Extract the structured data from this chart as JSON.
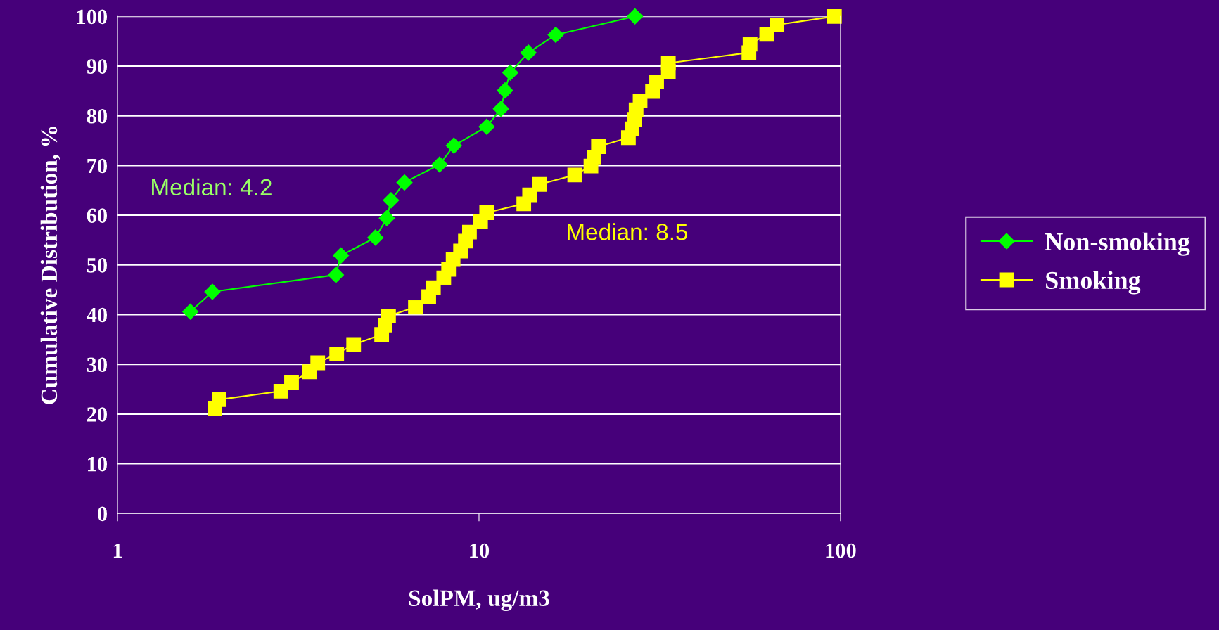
{
  "chart_data": {
    "type": "line",
    "xlabel": "SolPM, ug/m3",
    "ylabel": "Cumulative Distribution, %",
    "log": "x",
    "xlim": [
      1,
      100
    ],
    "xticks": [
      1,
      10,
      100
    ],
    "ylim": [
      0,
      100
    ],
    "yticks": [
      0,
      10,
      20,
      30,
      40,
      50,
      60,
      70,
      80,
      90,
      100
    ],
    "grid": "y",
    "legend": "right",
    "annotations": [
      "Median: 4.2",
      "Median: 8.5"
    ],
    "series": [
      {
        "name": "Non-smoking",
        "color": "#00ff00",
        "marker": "diamond",
        "x": [
          1.59,
          1.83,
          4.02,
          4.15,
          5.17,
          5.56,
          5.71,
          6.22,
          7.78,
          8.52,
          10.5,
          11.5,
          11.8,
          12.2,
          13.7,
          16.3,
          27.0
        ],
        "values": [
          40.6,
          44.6,
          48.0,
          51.9,
          55.5,
          59.4,
          63.0,
          66.6,
          70.2,
          74.0,
          77.8,
          81.4,
          85.1,
          88.7,
          92.7,
          96.3,
          100
        ]
      },
      {
        "name": "Smoking",
        "color": "#ffff00",
        "marker": "square",
        "x": [
          1.86,
          1.91,
          2.83,
          3.03,
          3.4,
          3.58,
          4.04,
          4.5,
          5.38,
          5.5,
          5.62,
          6.67,
          7.26,
          7.48,
          7.99,
          8.24,
          8.48,
          8.89,
          9.17,
          9.41,
          10.1,
          10.5,
          13.3,
          13.8,
          14.7,
          18.4,
          20.4,
          20.8,
          21.4,
          25.9,
          26.5,
          26.9,
          27.2,
          27.9,
          30.2,
          31.0,
          33.4,
          33.4,
          55.8,
          56.2,
          62.5,
          66.7,
          96.2
        ],
        "values": [
          21.1,
          22.9,
          24.6,
          26.4,
          28.5,
          30.3,
          32.1,
          34.0,
          36.0,
          37.9,
          39.7,
          41.5,
          43.6,
          45.4,
          47.4,
          49.1,
          51.1,
          52.8,
          54.8,
          56.6,
          58.7,
          60.5,
          62.3,
          64.1,
          66.2,
          68.1,
          69.9,
          71.7,
          73.8,
          75.6,
          77.4,
          79.3,
          81.2,
          83.0,
          84.9,
          86.8,
          88.9,
          90.6,
          92.7,
          94.4,
          96.4,
          98.3,
          100
        ]
      }
    ]
  }
}
